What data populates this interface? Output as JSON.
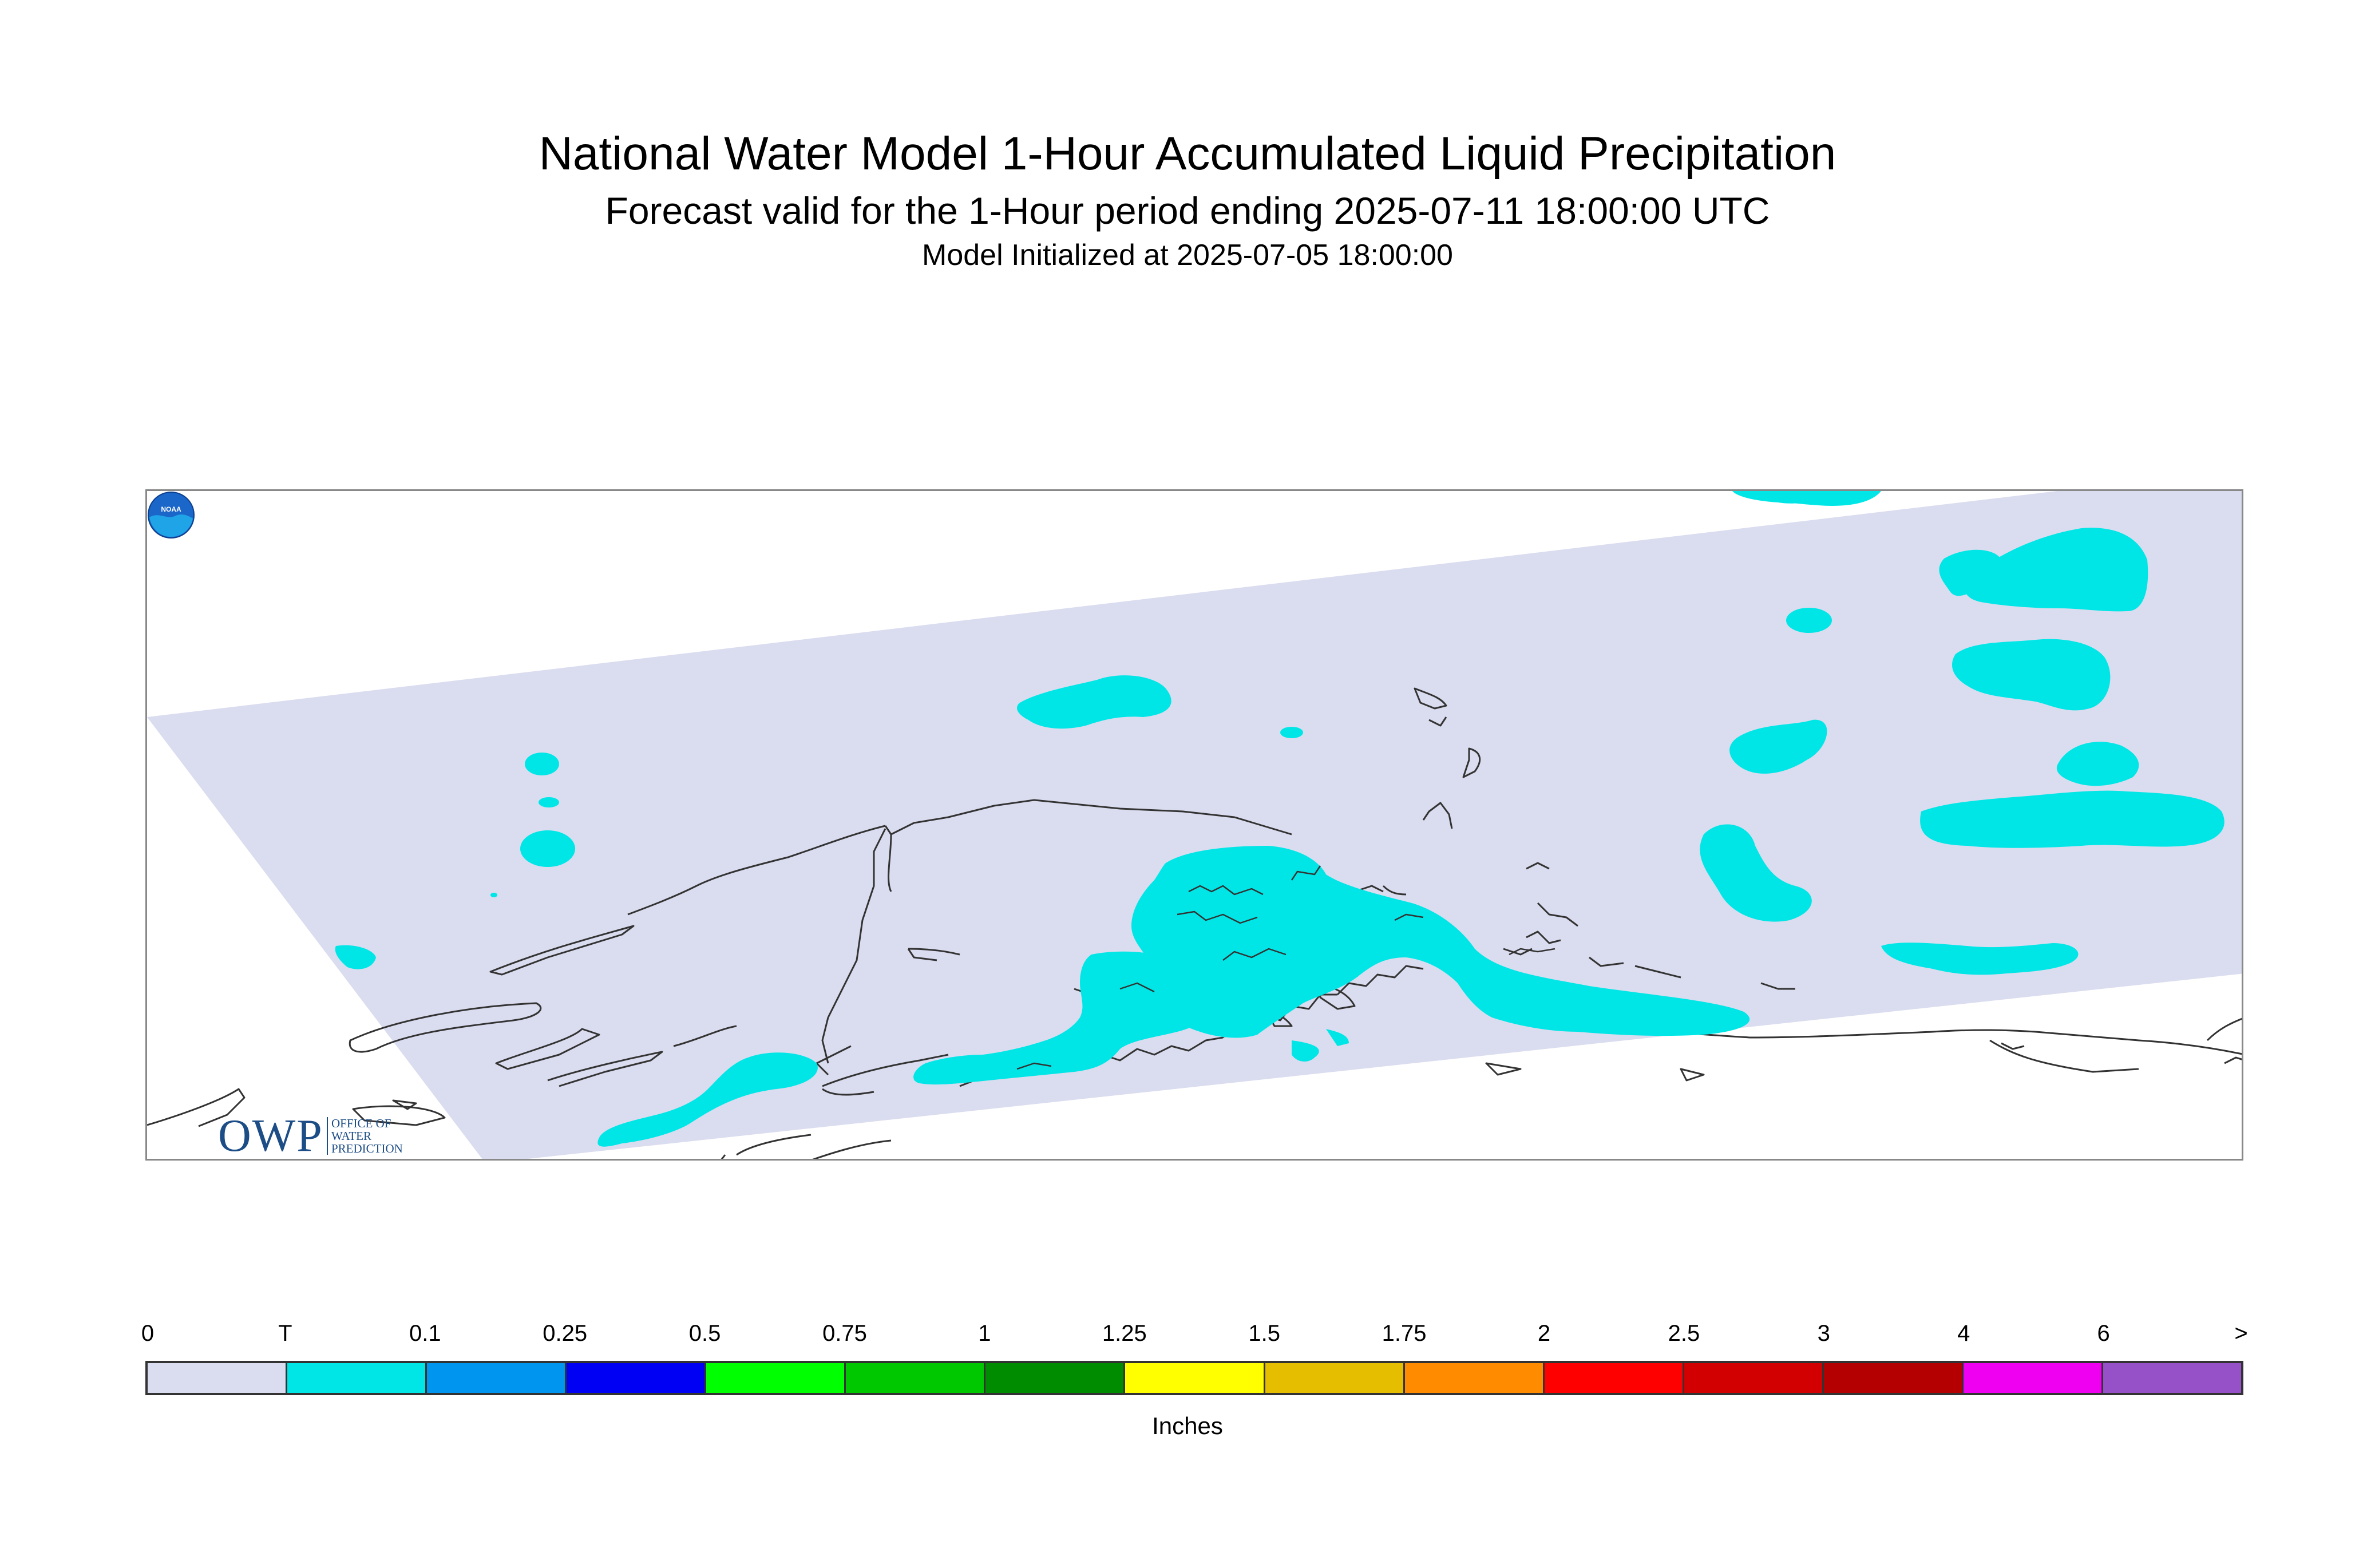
{
  "title": "National Water Model 1-Hour Accumulated Liquid Precipitation",
  "subtitle": "Forecast valid for the 1-Hour period ending 2025-07-11 18:00:00 UTC",
  "initialized": "Model Initialized at 2025-07-05 18:00:00",
  "logo": {
    "main": "OWP",
    "line1": "OFFICE OF",
    "line2": "WATER",
    "line3": "PREDICTION"
  },
  "noaa_logo": "NOAA",
  "legend": {
    "ticks": [
      "0",
      "T",
      "0.1",
      "0.25",
      "0.5",
      "0.75",
      "1",
      "1.25",
      "1.5",
      "1.75",
      "2",
      "2.5",
      "3",
      "4",
      "6",
      ">"
    ],
    "colors": [
      "#dadcef",
      "#00e6e6",
      "#0096f0",
      "#0000f5",
      "#00ff00",
      "#00c800",
      "#008c00",
      "#ffff00",
      "#e6be00",
      "#ff8c00",
      "#ff0000",
      "#d20000",
      "#b40000",
      "#f000f0",
      "#9650c8"
    ],
    "units": "Inches"
  },
  "colors": {
    "domain": "#dadcef",
    "trace": "#00e6e6",
    "coastline": "#333333"
  }
}
